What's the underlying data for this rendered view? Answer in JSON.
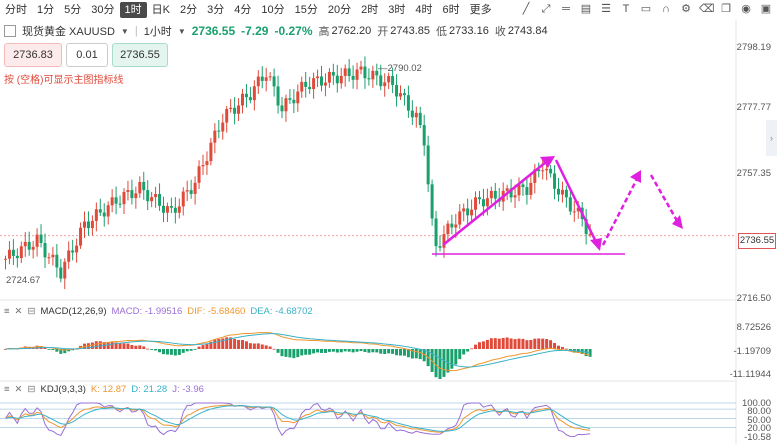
{
  "toolbar": {
    "timeframes": [
      "分时",
      "1分",
      "5分",
      "30分",
      "1时",
      "日K",
      "2分",
      "3分",
      "4分",
      "10分",
      "15分",
      "20分",
      "2时",
      "3时",
      "4时",
      "6时",
      "更多"
    ],
    "active_index": 4,
    "more_label": "更多",
    "right_icons": [
      "line-tool-icon",
      "ray-tool-icon",
      "hline-tool-icon",
      "channel-tool-icon",
      "fib-tool-icon",
      "text-tool-icon",
      "rect-tool-icon",
      "magnet-icon",
      "settings-icon",
      "eraser-icon",
      "copy-icon",
      "eye-icon",
      "screenshot-icon"
    ]
  },
  "header": {
    "name": "现货黄金 XAUUSD",
    "period": "1小时",
    "price": "2736.55",
    "change": "-7.29",
    "change_pct": "-0.27%",
    "high_label": "高",
    "high": "2762.20",
    "open_label": "开",
    "open": "2743.85",
    "low_label": "低",
    "low": "2733.16",
    "close_label": "收",
    "close": "2743.84"
  },
  "trade": {
    "bid": "2736.83",
    "lot": "0.01",
    "ask": "2736.55"
  },
  "note": "按 (空格)可显示主图指标线",
  "price_axis": [
    "2798.19",
    "2777.77",
    "2757.35",
    "2736.55",
    "2716.50"
  ],
  "annotations": {
    "high_marker": "2790.02",
    "low_marker": "2724.67"
  },
  "macd": {
    "title": "MACD(12,26,9)",
    "macd_label": "MACD: -1.99516",
    "dif_label": "DIF: -5.68460",
    "dea_label": "DEA: -4.68702",
    "axis": [
      "8.72526",
      "-1.19709",
      "-11.11944"
    ],
    "colors": {
      "macd": "#9a6fd6",
      "dif": "#f0962e",
      "dea": "#3ab1c8"
    }
  },
  "kdj": {
    "title": "KDJ(9,3,3)",
    "k_label": "K: 12.87",
    "d_label": "D: 21.28",
    "j_label": "J: -3.96",
    "axis": [
      "100.00",
      "80.00",
      "50.00",
      "20.00",
      "-10.58"
    ],
    "colors": {
      "k": "#f0962e",
      "d": "#3ab1c8",
      "j": "#9a6fd6"
    }
  },
  "colors": {
    "up": "#e04a3b",
    "down": "#19a06d",
    "drawing": "#e020e0"
  }
}
